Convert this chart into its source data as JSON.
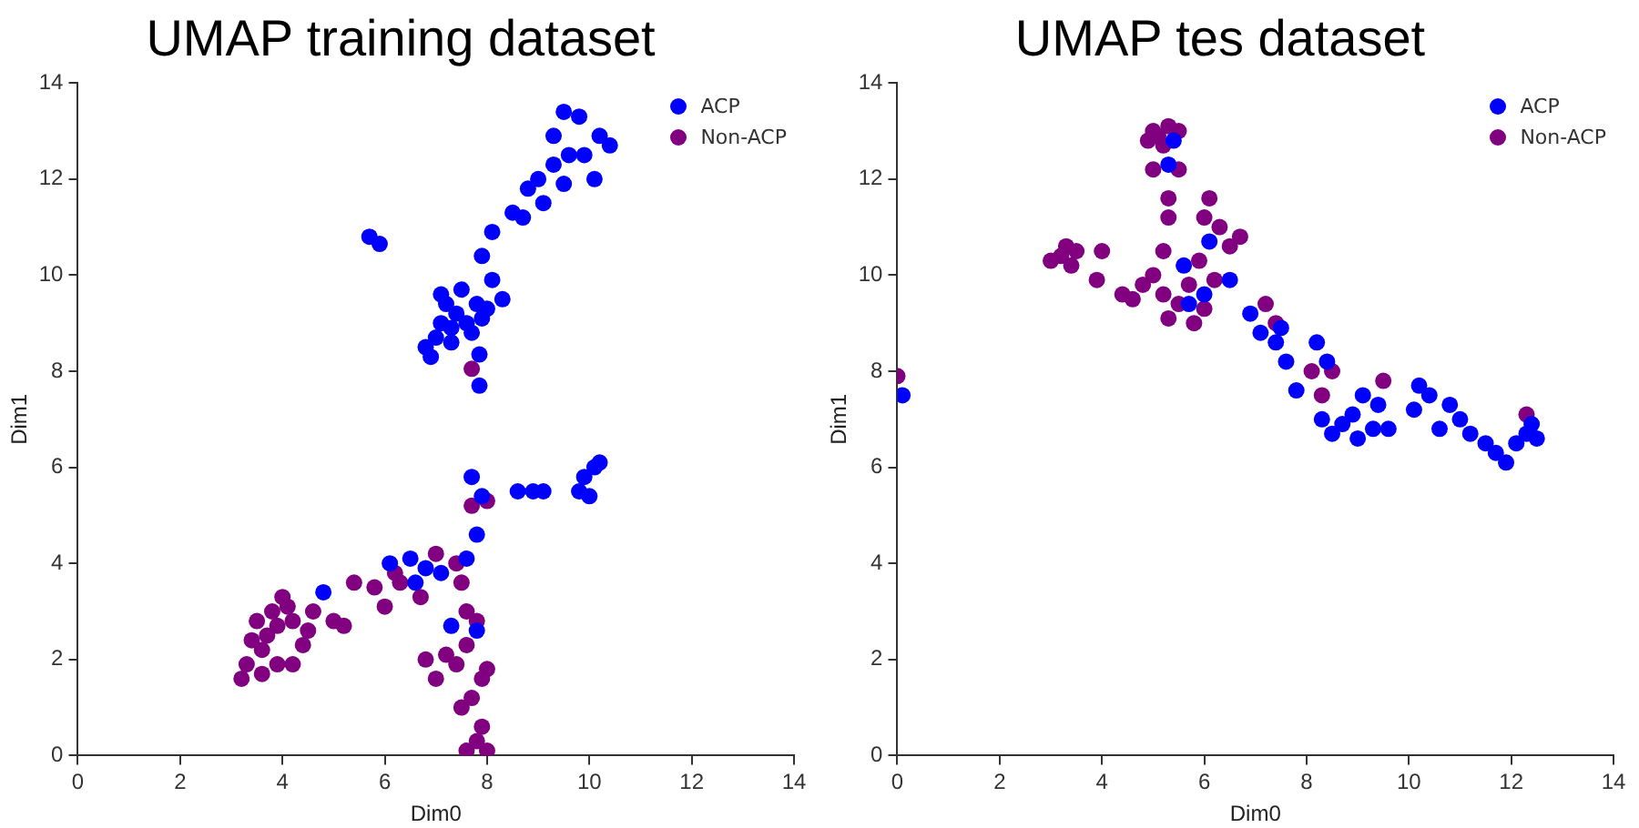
{
  "chart_data": [
    {
      "type": "scatter",
      "title": "UMAP training dataset",
      "xlabel": "Dim0",
      "ylabel": "Dim1",
      "xlim": [
        0,
        14
      ],
      "ylim": [
        0,
        14
      ],
      "xticks": [
        0,
        2,
        4,
        6,
        8,
        10,
        12,
        14
      ],
      "yticks": [
        0,
        2,
        4,
        6,
        8,
        10,
        12,
        14
      ],
      "grid": false,
      "legend": "top right",
      "marker": "circle",
      "series": [
        {
          "name": "ACP",
          "color": "#0000ff",
          "x": [
            5.7,
            5.9,
            6.8,
            6.9,
            7.0,
            7.1,
            7.2,
            7.3,
            7.4,
            7.5,
            7.6,
            7.7,
            7.8,
            7.9,
            8.0,
            7.85,
            7.85,
            7.9,
            8.1,
            8.1,
            8.3,
            8.5,
            8.8,
            9.0,
            9.1,
            9.3,
            9.5,
            9.3,
            9.5,
            9.8,
            9.9,
            10.1,
            10.2,
            10.4,
            7.1,
            7.3,
            8.7,
            9.6,
            7.7,
            7.9,
            7.8,
            8.6,
            8.9,
            9.1,
            9.8,
            9.9,
            10.1,
            10.2,
            10.0,
            6.1,
            6.5,
            6.6,
            6.8,
            7.1,
            4.8,
            7.3,
            7.8,
            7.6
          ],
          "values": [
            10.8,
            10.65,
            8.5,
            8.3,
            8.7,
            9.0,
            9.4,
            8.6,
            9.2,
            9.7,
            9.0,
            8.8,
            9.4,
            9.1,
            9.3,
            7.7,
            8.35,
            10.4,
            10.9,
            9.9,
            9.5,
            11.3,
            11.8,
            12.0,
            11.5,
            12.3,
            11.9,
            12.9,
            13.4,
            13.3,
            12.5,
            12.0,
            12.9,
            12.7,
            9.6,
            8.9,
            11.2,
            12.5,
            5.8,
            5.4,
            4.6,
            5.5,
            5.5,
            5.5,
            5.5,
            5.8,
            6.0,
            6.1,
            5.4,
            4.0,
            4.1,
            3.6,
            3.9,
            3.8,
            3.4,
            2.7,
            2.6,
            4.1
          ]
        },
        {
          "name": "Non-ACP",
          "color": "#800080",
          "x": [
            3.2,
            3.3,
            3.4,
            3.5,
            3.6,
            3.7,
            3.8,
            3.9,
            4.0,
            4.1,
            4.2,
            3.9,
            4.2,
            4.4,
            4.6,
            5.0,
            5.2,
            5.4,
            5.8,
            6.0,
            6.3,
            6.7,
            7.0,
            7.4,
            7.5,
            7.6,
            6.8,
            7.0,
            7.2,
            7.4,
            7.6,
            7.8,
            7.9,
            8.0,
            7.5,
            7.7,
            7.6,
            7.8,
            8.0,
            7.9,
            7.7,
            8.0,
            7.7,
            6.2,
            4.5,
            3.6
          ],
          "values": [
            1.6,
            1.9,
            2.4,
            2.8,
            2.2,
            2.5,
            3.0,
            2.7,
            3.3,
            3.1,
            2.8,
            1.9,
            1.9,
            2.3,
            3.0,
            2.8,
            2.7,
            3.6,
            3.5,
            3.1,
            3.6,
            3.3,
            4.2,
            4.0,
            3.6,
            3.0,
            2.0,
            1.6,
            2.1,
            1.9,
            2.3,
            2.8,
            1.6,
            1.8,
            1.0,
            1.2,
            0.1,
            0.3,
            0.1,
            0.6,
            5.2,
            5.3,
            8.05,
            3.8,
            2.6,
            1.7
          ]
        }
      ]
    },
    {
      "type": "scatter",
      "title": "UMAP tes dataset",
      "xlabel": "Dim0",
      "ylabel": "Dim1",
      "xlim": [
        0,
        14
      ],
      "ylim": [
        0,
        14
      ],
      "xticks": [
        0,
        2,
        4,
        6,
        8,
        10,
        12,
        14
      ],
      "yticks": [
        0,
        2,
        4,
        6,
        8,
        10,
        12,
        14
      ],
      "grid": false,
      "legend": "top right",
      "marker": "circle",
      "series": [
        {
          "name": "ACP",
          "color": "#0000ff",
          "x": [
            0.1,
            5.3,
            5.4,
            5.6,
            6.1,
            6.0,
            6.5,
            6.9,
            7.1,
            7.4,
            7.6,
            7.8,
            8.2,
            8.3,
            8.5,
            8.7,
            8.9,
            9.1,
            9.3,
            9.0,
            9.4,
            9.6,
            10.1,
            10.2,
            10.4,
            10.6,
            10.8,
            11.0,
            11.2,
            11.5,
            11.7,
            11.9,
            12.1,
            12.3,
            12.4,
            12.5,
            8.4,
            7.5,
            5.7
          ],
          "values": [
            7.5,
            12.3,
            12.8,
            10.2,
            10.7,
            9.6,
            9.9,
            9.2,
            8.8,
            8.6,
            8.2,
            7.6,
            8.6,
            7.0,
            6.7,
            6.9,
            7.1,
            7.5,
            6.8,
            6.6,
            7.3,
            6.8,
            7.2,
            7.7,
            7.5,
            6.8,
            7.3,
            7.0,
            6.7,
            6.5,
            6.3,
            6.1,
            6.5,
            6.7,
            6.9,
            6.6,
            8.2,
            8.9,
            9.4
          ]
        },
        {
          "name": "Non-ACP",
          "color": "#800080",
          "x": [
            0.0,
            3.0,
            3.2,
            3.3,
            3.4,
            3.5,
            3.9,
            4.0,
            4.4,
            4.6,
            4.8,
            5.0,
            5.2,
            5.3,
            5.5,
            5.7,
            5.8,
            6.0,
            4.9,
            5.0,
            5.1,
            5.3,
            5.5,
            5.2,
            5.0,
            5.5,
            5.3,
            5.3,
            5.2,
            6.1,
            6.0,
            6.3,
            6.5,
            6.2,
            5.9,
            7.2,
            7.4,
            8.1,
            8.3,
            8.5,
            9.5,
            12.3,
            6.7
          ],
          "values": [
            7.9,
            10.3,
            10.4,
            10.6,
            10.2,
            10.5,
            9.9,
            10.5,
            9.6,
            9.5,
            9.8,
            10.0,
            9.6,
            9.1,
            9.4,
            9.8,
            9.0,
            9.3,
            12.8,
            13.0,
            12.9,
            13.1,
            13.0,
            12.7,
            12.2,
            12.2,
            11.6,
            11.2,
            10.5,
            11.6,
            11.2,
            11.0,
            10.6,
            9.9,
            10.3,
            9.4,
            9.0,
            8.0,
            7.5,
            8.0,
            7.8,
            7.1,
            10.8
          ]
        }
      ]
    }
  ]
}
